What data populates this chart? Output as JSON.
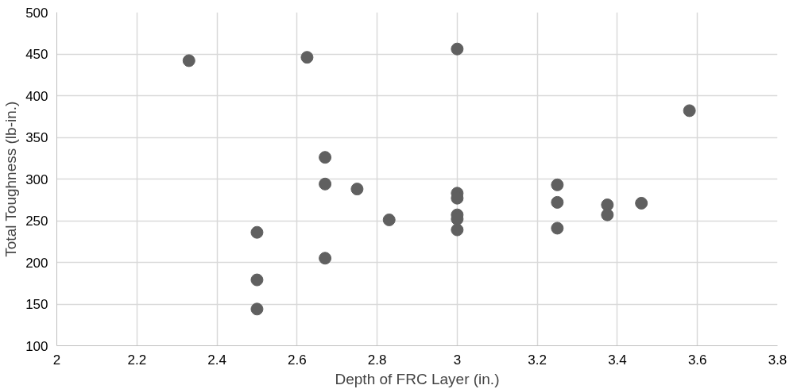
{
  "chart_data": {
    "type": "scatter",
    "xlabel": "Depth of FRC Layer (in.)",
    "ylabel": "Total Toughness (lb-in.)",
    "x": [
      2.33,
      2.625,
      3.0,
      3.58,
      2.67,
      2.67,
      2.75,
      3.0,
      3.0,
      3.25,
      3.25,
      3.375,
      3.46,
      3.375,
      3.0,
      3.0,
      2.83,
      3.0,
      3.25,
      2.5,
      2.67,
      2.5,
      2.5
    ],
    "series": [
      {
        "color": "#606060",
        "values": [
          442,
          446,
          456,
          382,
          326,
          294,
          288,
          283,
          277,
          293,
          272,
          269,
          271,
          257,
          257,
          252,
          251,
          239,
          241,
          236,
          205,
          179,
          144
        ]
      }
    ],
    "xlim": [
      2,
      3.8
    ],
    "xticks": [
      2,
      2.2,
      2.4,
      2.6,
      2.8,
      3,
      3.2,
      3.4,
      3.6,
      3.8
    ],
    "ylim": [
      100,
      500
    ],
    "yticks": [
      100,
      150,
      200,
      250,
      300,
      350,
      400,
      450,
      500
    ],
    "grid": true,
    "marker": "circle"
  }
}
